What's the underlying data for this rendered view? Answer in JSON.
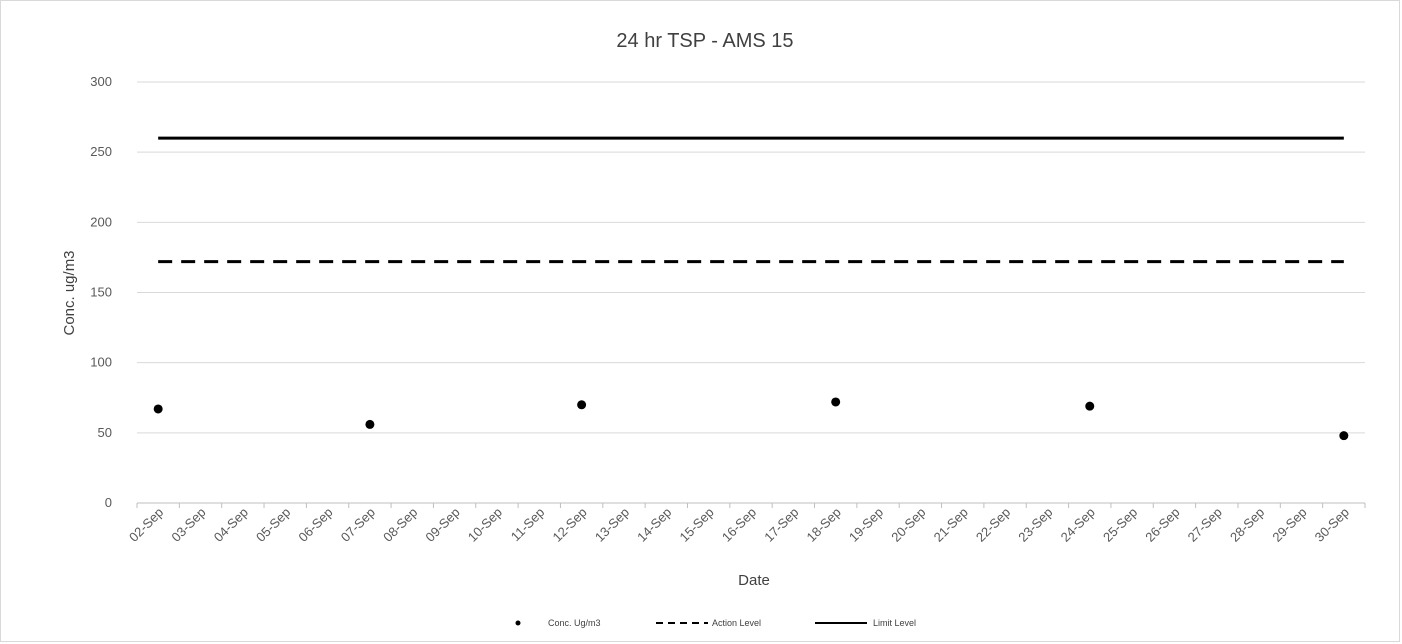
{
  "chart_data": {
    "type": "line",
    "title": "24 hr TSP - AMS 15",
    "xlabel": "Date",
    "ylabel": "Conc. ug/m3",
    "ylim": [
      0,
      300
    ],
    "yticks": [
      0,
      50,
      100,
      150,
      200,
      250,
      300
    ],
    "grid": true,
    "legend_position": "bottom",
    "categories": [
      "02-Sep",
      "03-Sep",
      "04-Sep",
      "05-Sep",
      "06-Sep",
      "07-Sep",
      "08-Sep",
      "09-Sep",
      "10-Sep",
      "11-Sep",
      "12-Sep",
      "13-Sep",
      "14-Sep",
      "15-Sep",
      "16-Sep",
      "17-Sep",
      "18-Sep",
      "19-Sep",
      "20-Sep",
      "21-Sep",
      "22-Sep",
      "23-Sep",
      "24-Sep",
      "25-Sep",
      "26-Sep",
      "27-Sep",
      "28-Sep",
      "29-Sep",
      "30-Sep"
    ],
    "series": [
      {
        "name": "Conc. Ug/m3",
        "style": "marker",
        "color": "#000000",
        "points": [
          {
            "x": "02-Sep",
            "y": 67
          },
          {
            "x": "07-Sep",
            "y": 56
          },
          {
            "x": "12-Sep",
            "y": 70
          },
          {
            "x": "18-Sep",
            "y": 72
          },
          {
            "x": "24-Sep",
            "y": 69
          },
          {
            "x": "30-Sep",
            "y": 48
          }
        ]
      },
      {
        "name": "Action Level",
        "style": "dashed",
        "color": "#000000",
        "constant": 172
      },
      {
        "name": "Limit Level",
        "style": "solid",
        "color": "#000000",
        "constant": 260
      }
    ]
  }
}
